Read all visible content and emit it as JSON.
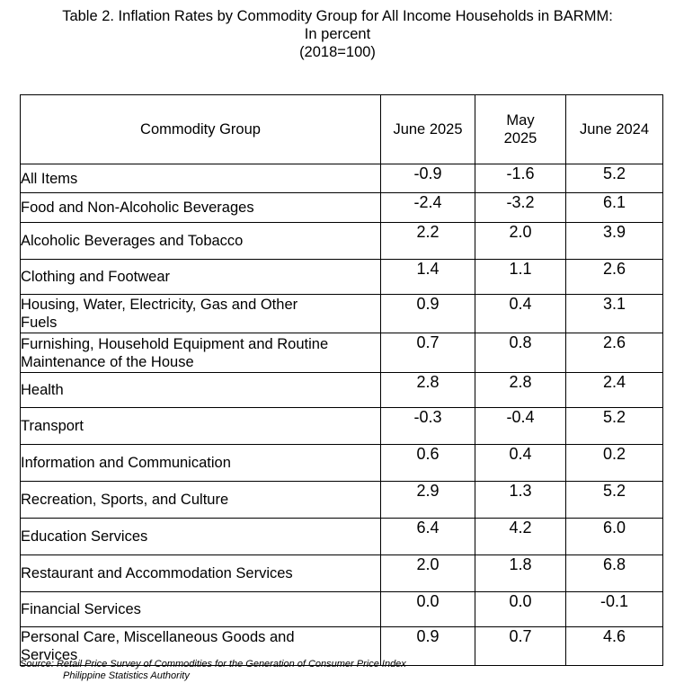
{
  "title": {
    "line1": "Table 2. Inflation Rates by Commodity Group for All Income Households in BARMM:",
    "line2": "In percent",
    "line3": "(2018=100)"
  },
  "table": {
    "headers": {
      "commodity_group": "Commodity Group",
      "june_2025": "June 2025",
      "may_2025_line1": "May",
      "may_2025_line2": "2025",
      "june_2024": "June 2024"
    },
    "rows": [
      {
        "group": "All Items",
        "june_2025": "-0.9",
        "may_2025": "-1.6",
        "june_2024": "5.2"
      },
      {
        "group": "Food and Non-Alcoholic Beverages",
        "june_2025": "-2.4",
        "may_2025": "-3.2",
        "june_2024": "6.1"
      },
      {
        "group": "Alcoholic Beverages and Tobacco",
        "june_2025": "2.2",
        "may_2025": "2.0",
        "june_2024": "3.9"
      },
      {
        "group": "Clothing and Footwear",
        "june_2025": "1.4",
        "may_2025": "1.1",
        "june_2024": "2.6"
      },
      {
        "group_line1": "Housing, Water, Electricity, Gas and Other",
        "group_line2": "Fuels",
        "june_2025": "0.9",
        "may_2025": "0.4",
        "june_2024": "3.1"
      },
      {
        "group_line1": "Furnishing, Household Equipment and Routine",
        "group_line2": "Maintenance of the House",
        "june_2025": "0.7",
        "may_2025": "0.8",
        "june_2024": "2.6"
      },
      {
        "group": "Health",
        "june_2025": "2.8",
        "may_2025": "2.8",
        "june_2024": "2.4"
      },
      {
        "group": "Transport",
        "june_2025": "-0.3",
        "may_2025": "-0.4",
        "june_2024": "5.2"
      },
      {
        "group": "Information and Communication",
        "june_2025": "0.6",
        "may_2025": "0.4",
        "june_2024": "0.2"
      },
      {
        "group": "Recreation, Sports, and Culture",
        "june_2025": "2.9",
        "may_2025": "1.3",
        "june_2024": "5.2"
      },
      {
        "group": "Education Services",
        "june_2025": "6.4",
        "may_2025": "4.2",
        "june_2024": "6.0"
      },
      {
        "group": "Restaurant and Accommodation Services",
        "june_2025": "2.0",
        "may_2025": "1.8",
        "june_2024": "6.8"
      },
      {
        "group": "Financial Services",
        "june_2025": "0.0",
        "may_2025": "0.0",
        "june_2024": "-0.1"
      },
      {
        "group_line1": "Personal Care, Miscellaneous Goods and",
        "group_line2": "Services",
        "june_2025": "0.9",
        "may_2025": "0.7",
        "june_2024": "4.6"
      }
    ]
  },
  "source": {
    "line1": "Source: Retail Price Survey of Commodities for the Generation of Consumer Price Index",
    "line2": "Philippine Statistics Authority"
  }
}
